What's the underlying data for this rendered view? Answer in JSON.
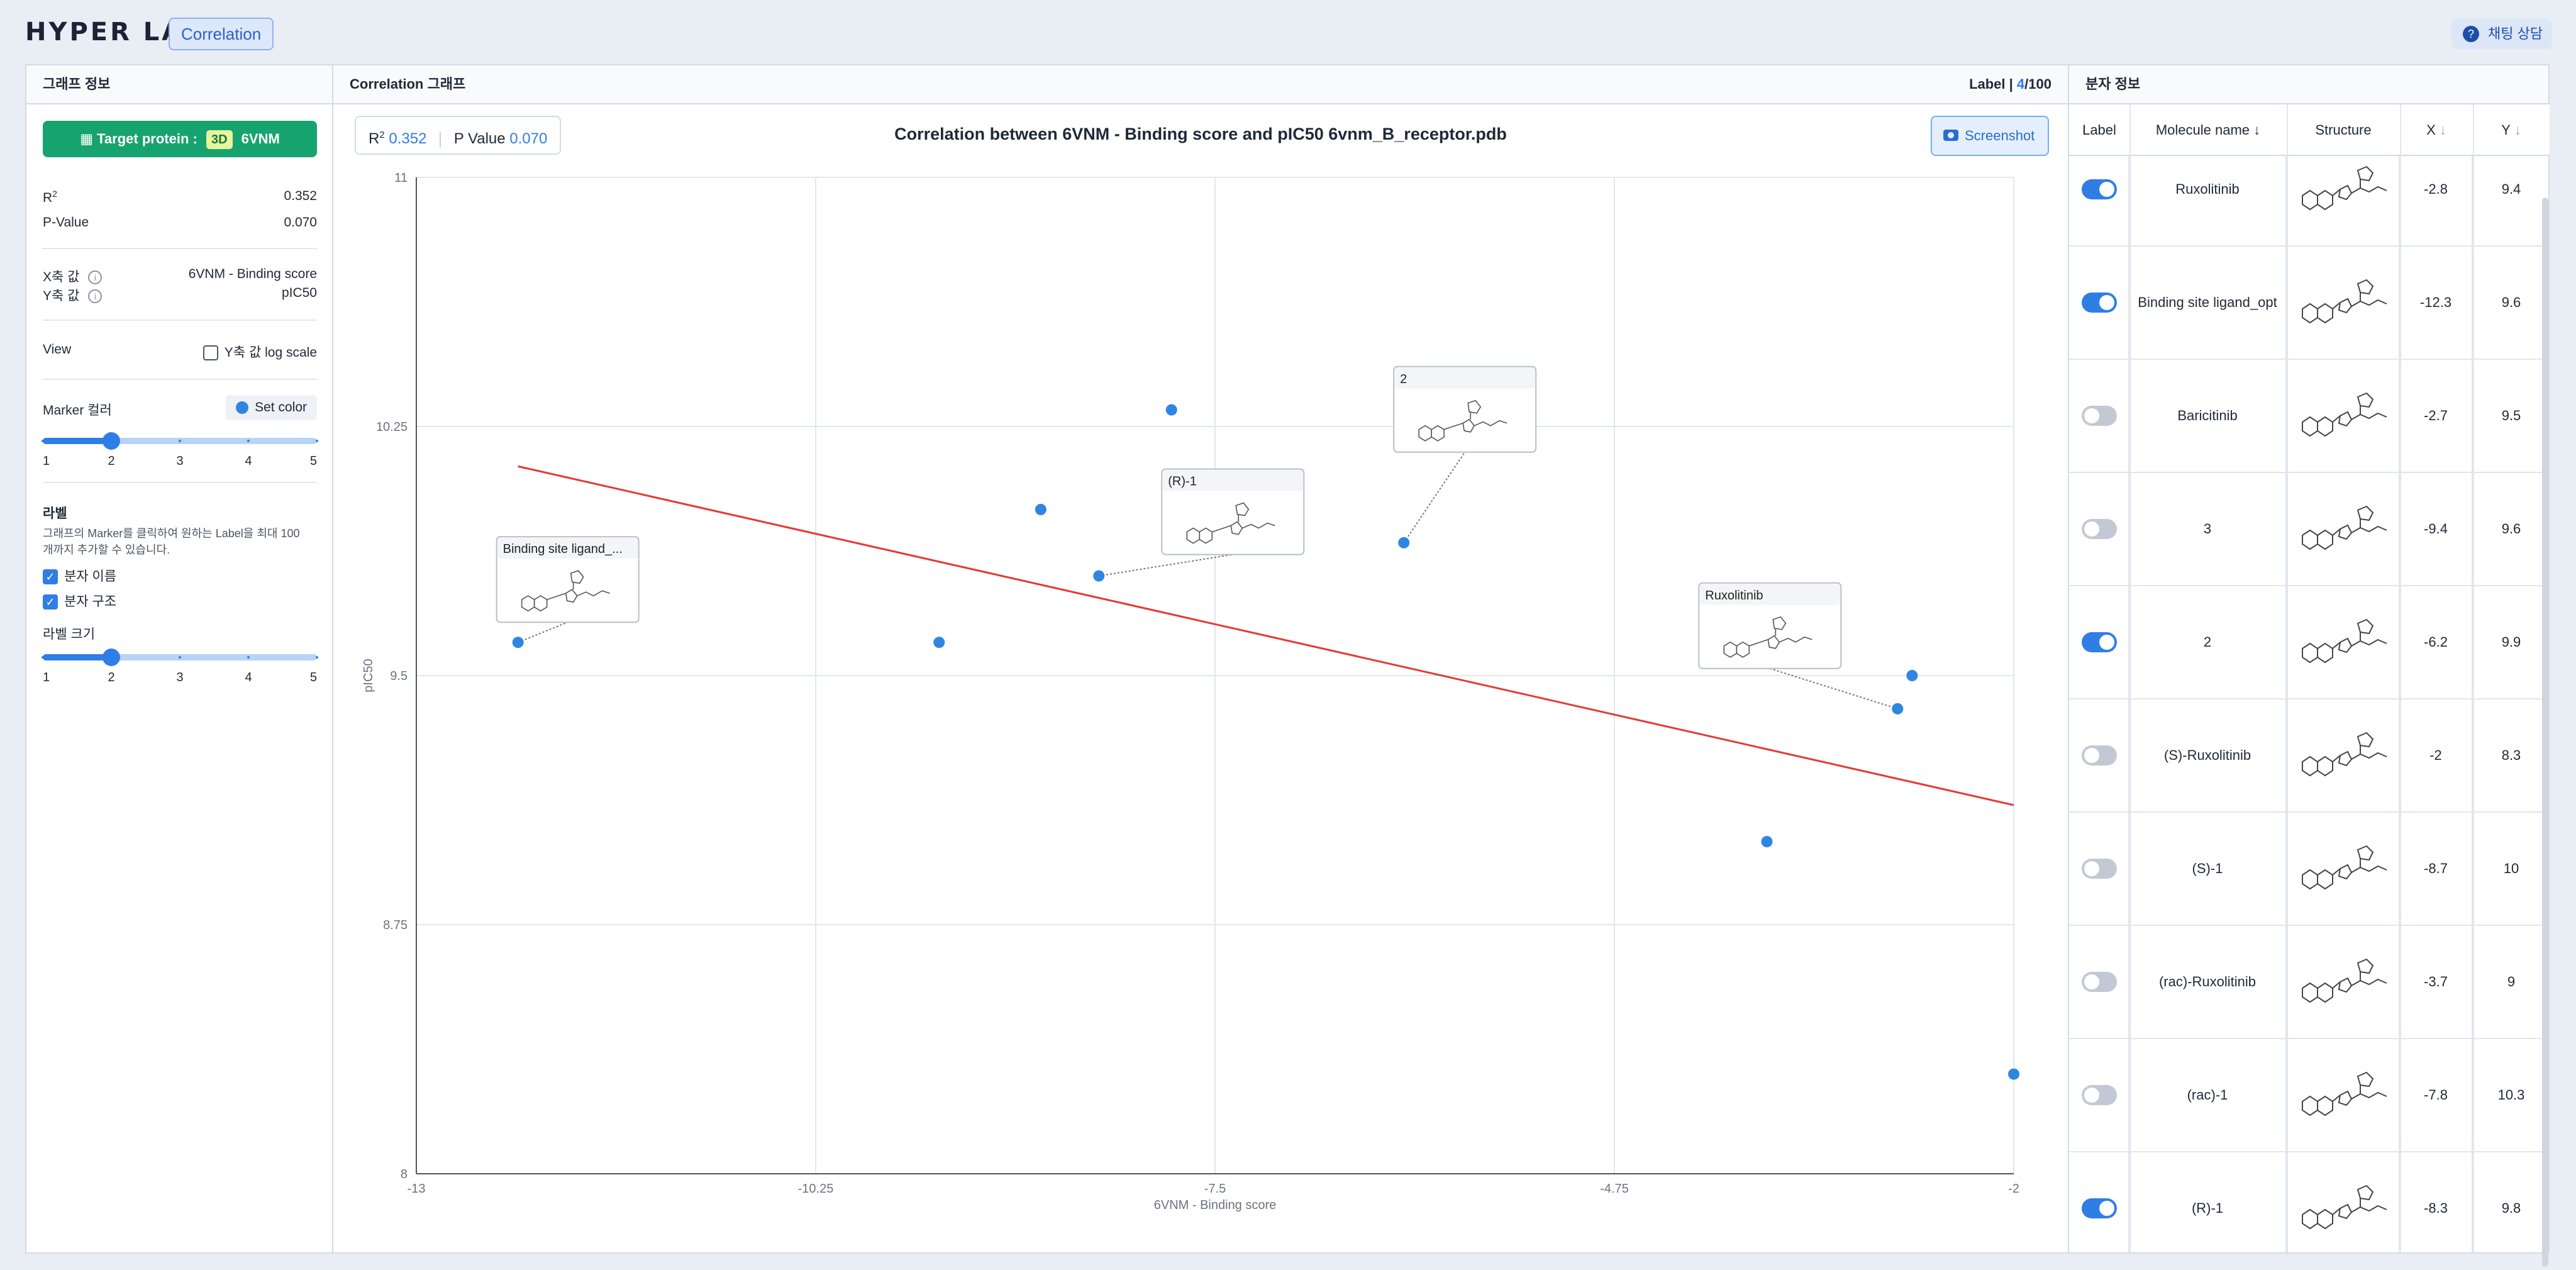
{
  "header": {
    "logo": "HYPER LAB",
    "tag": "Correlation",
    "chat_label": "채팅 상담"
  },
  "left_panel": {
    "title": "그래프 정보",
    "target_protein_prefix": "Target protein :",
    "badge_3d": "3D",
    "protein": "6VNM",
    "r2_label": "R",
    "r2_sup": "2",
    "r2_value": "0.352",
    "pvalue_label": "P-Value",
    "pvalue_value": "0.070",
    "x_axis_label": "X축 값",
    "x_axis_value": "6VNM - Binding score",
    "y_axis_label": "Y축 값",
    "y_axis_value": "pIC50",
    "view_label": "View",
    "log_scale_label": "Y축 값 log scale",
    "marker_color_label": "Marker 컬러",
    "set_color_label": "Set color",
    "marker_ticks": [
      "1",
      "2",
      "3",
      "4",
      "5"
    ],
    "marker_size": 2,
    "label_title": "라벨",
    "label_desc_1": "그래프의 Marker를 클릭하여 원하는 Label을 최대 100",
    "label_desc_2": "개까지 추가할 수 있습니다.",
    "check_name": "분자 이름",
    "check_structure": "분자 구조",
    "label_size_title": "라벨 크기",
    "label_ticks": [
      "1",
      "2",
      "3",
      "4",
      "5"
    ],
    "label_size": 2,
    "accent": "#2f7ee6",
    "button_green": "#17a36f"
  },
  "center_panel": {
    "title": "Correlation 그래프",
    "label_count_prefix": "Label |",
    "label_count_current": "4",
    "label_count_total": "/100",
    "stats_r": "R",
    "stats_r_sup": "2",
    "stats_r_value": "0.352",
    "stats_p_label": "P Value",
    "stats_p_value": "0.070",
    "chart_title": "Correlation between 6VNM - Binding score and pIC50 6vnm_B_receptor.pdb",
    "screenshot_label": "Screenshot"
  },
  "chart_data": {
    "type": "scatter",
    "xlabel": "6VNM - Binding score",
    "ylabel": "pIC50",
    "xlim": [
      -13,
      -2
    ],
    "ylim": [
      8,
      11
    ],
    "x_ticks": [
      "-13",
      "-10.25",
      "-7.5",
      "-4.75",
      "-2"
    ],
    "y_ticks": [
      "11",
      "10.25",
      "9.5",
      "8.75",
      "8"
    ],
    "grid": true,
    "marker_color": "#2f86e0",
    "regression_color": "#e53935",
    "points": [
      {
        "x": -12.3,
        "y": 9.6,
        "label": "Binding site ligand_..."
      },
      {
        "x": -9.4,
        "y": 9.6
      },
      {
        "x": -8.7,
        "y": 10.0
      },
      {
        "x": -8.3,
        "y": 9.8,
        "label": "(R)-1"
      },
      {
        "x": -7.8,
        "y": 10.3
      },
      {
        "x": -6.2,
        "y": 9.9,
        "label": "2"
      },
      {
        "x": -3.7,
        "y": 9.0
      },
      {
        "x": -2.8,
        "y": 9.4,
        "label": "Ruxolitinib"
      },
      {
        "x": -2.7,
        "y": 9.5
      },
      {
        "x": -2.0,
        "y": 8.3
      }
    ],
    "regression": {
      "x": [
        -12.3,
        -2
      ],
      "y": [
        10.13,
        9.11
      ]
    }
  },
  "right_panel": {
    "title": "분자 정보",
    "columns": {
      "label": "Label",
      "name": "Molecule name",
      "structure": "Structure",
      "x": "X",
      "y": "Y"
    },
    "rows": [
      {
        "on": true,
        "name": "Ruxolitinib",
        "x": "-2.8",
        "y": "9.4"
      },
      {
        "on": true,
        "name": "Binding site ligand_opt",
        "x": "-12.3",
        "y": "9.6"
      },
      {
        "on": false,
        "name": "Baricitinib",
        "x": "-2.7",
        "y": "9.5"
      },
      {
        "on": false,
        "name": "3",
        "x": "-9.4",
        "y": "9.6"
      },
      {
        "on": true,
        "name": "2",
        "x": "-6.2",
        "y": "9.9"
      },
      {
        "on": false,
        "name": "(S)-Ruxolitinib",
        "x": "-2",
        "y": "8.3"
      },
      {
        "on": false,
        "name": "(S)-1",
        "x": "-8.7",
        "y": "10"
      },
      {
        "on": false,
        "name": "(rac)-Ruxolitinib",
        "x": "-3.7",
        "y": "9"
      },
      {
        "on": false,
        "name": "(rac)-1",
        "x": "-7.8",
        "y": "10.3"
      },
      {
        "on": true,
        "name": "(R)-1",
        "x": "-8.3",
        "y": "9.8"
      }
    ]
  }
}
